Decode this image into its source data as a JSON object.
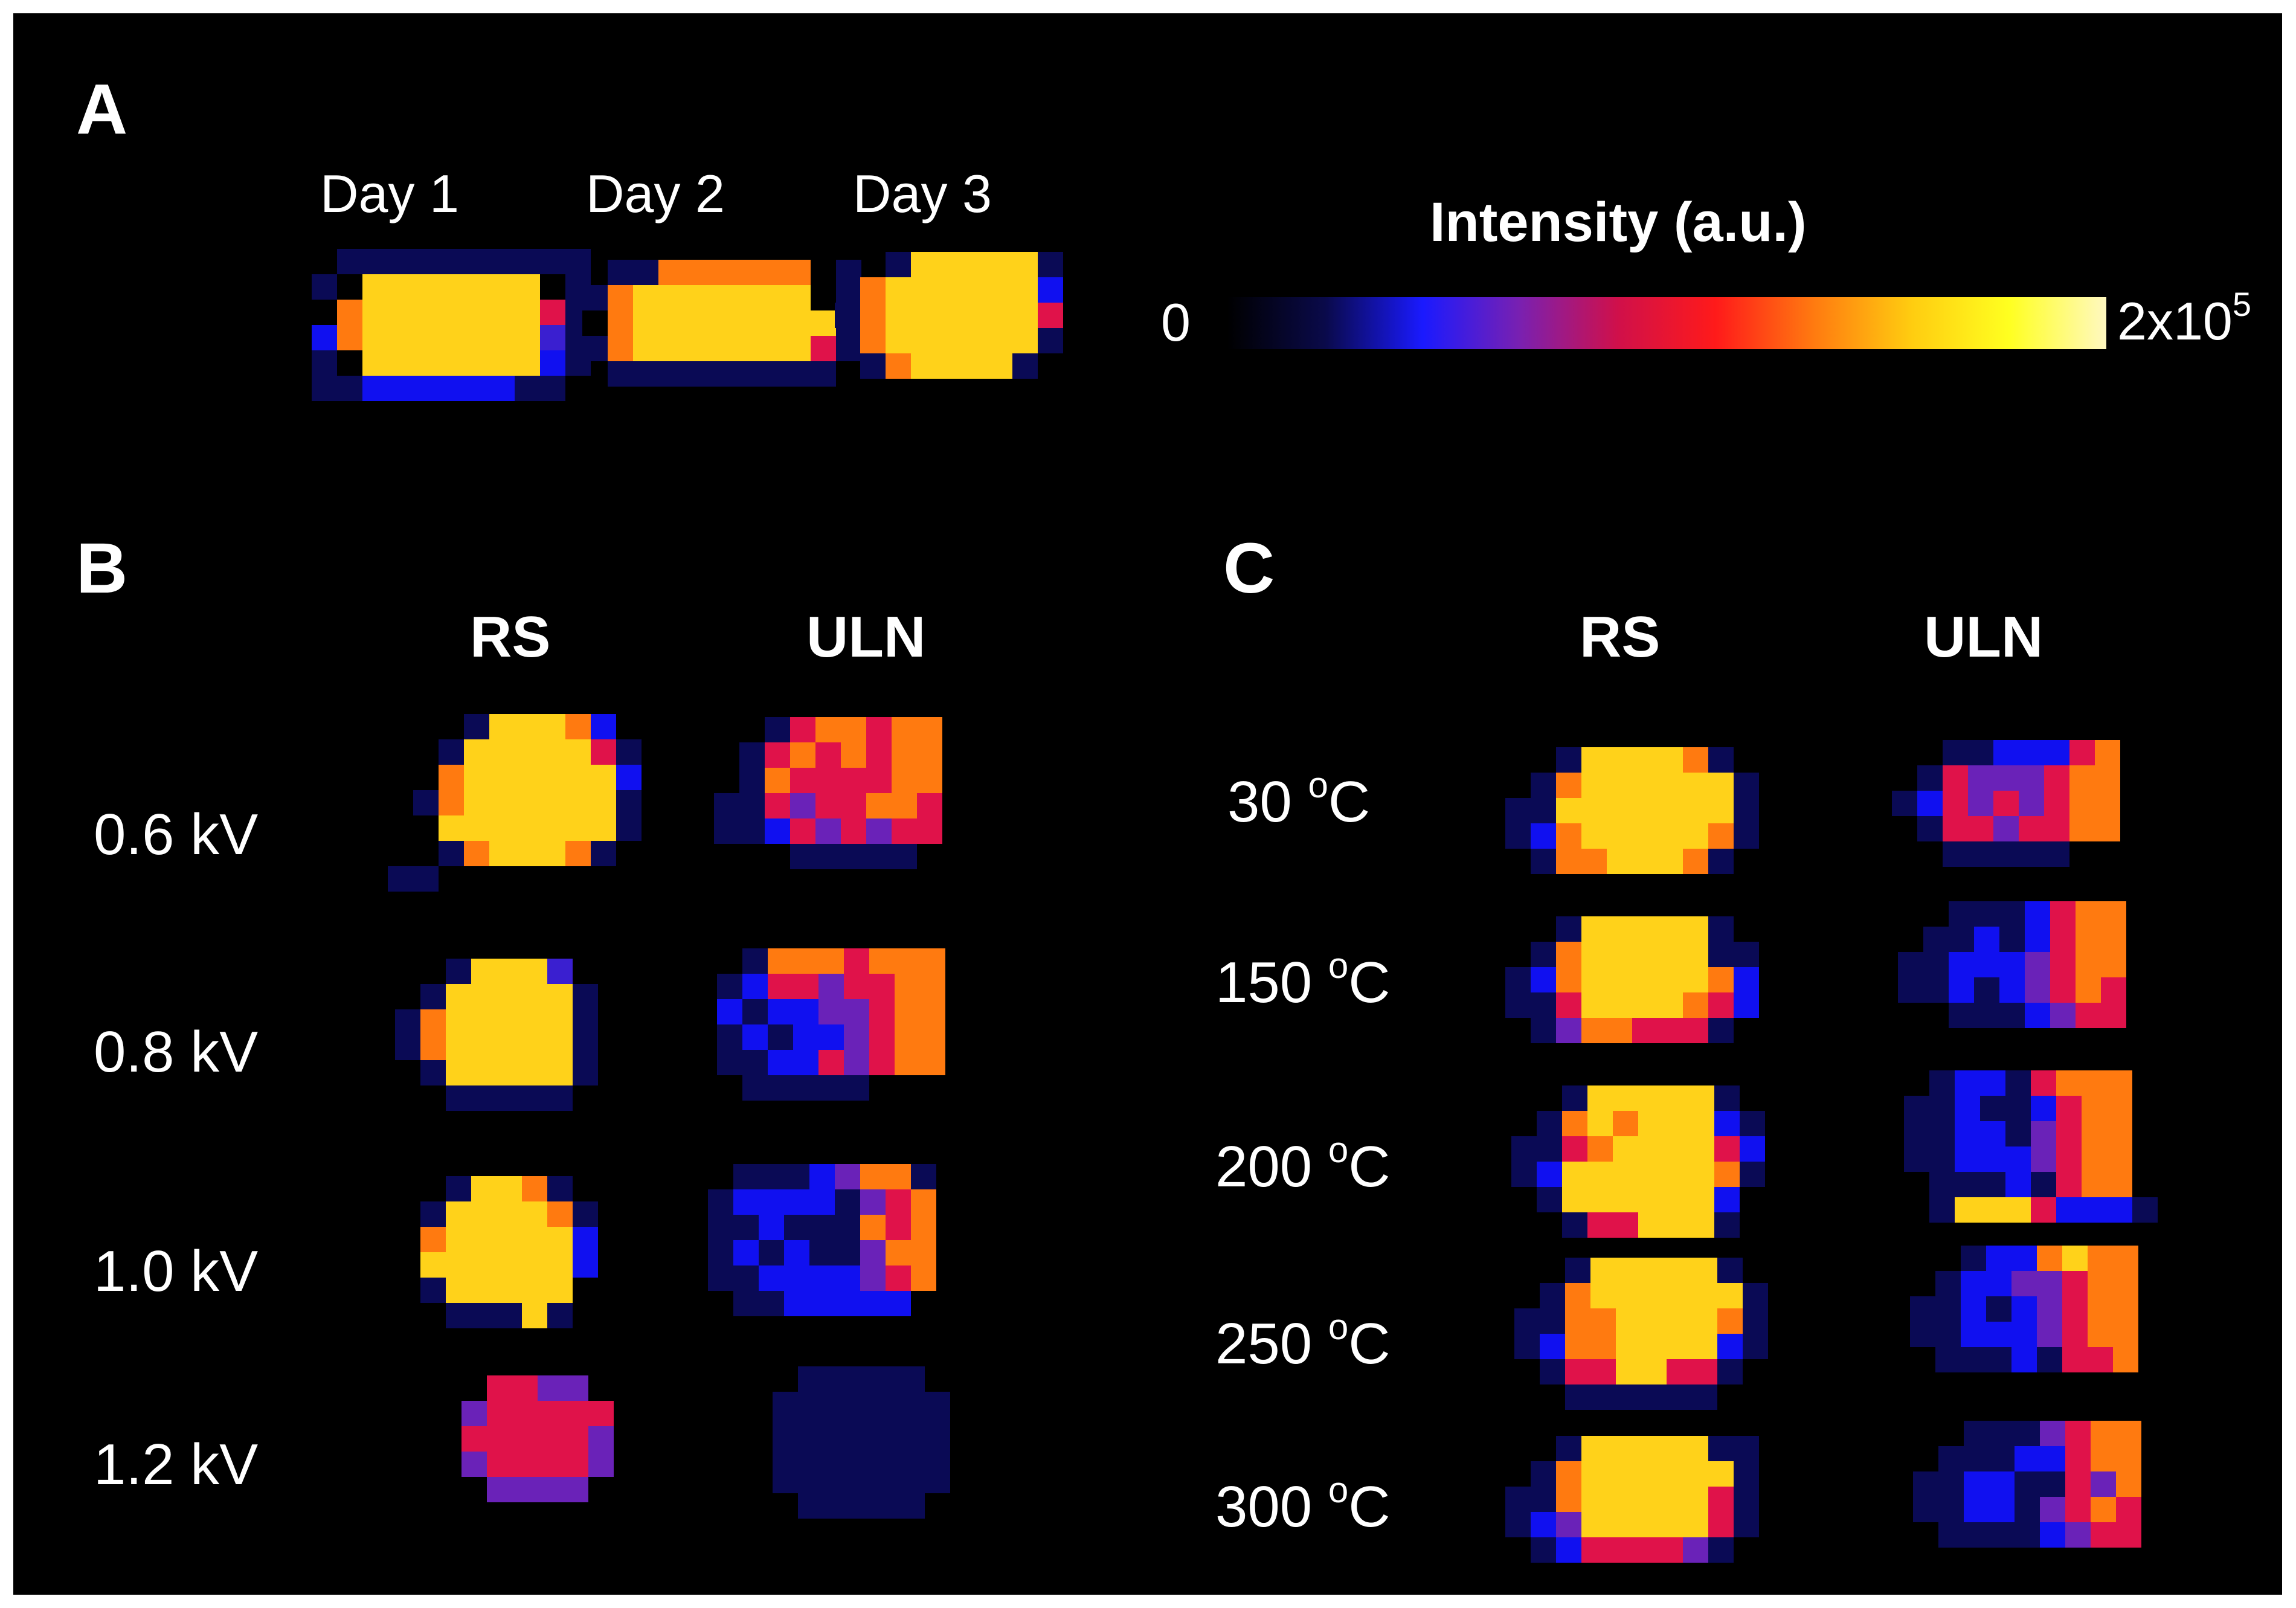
{
  "panels": {
    "a": {
      "letter": "A",
      "columns": [
        "Day 1",
        "Day 2",
        "Day 3"
      ]
    },
    "b": {
      "letter": "B",
      "columns": [
        "RS",
        "ULN"
      ],
      "rows": [
        "0.6 kV",
        "0.8 kV",
        "1.0 kV",
        "1.2 kV"
      ]
    },
    "c": {
      "letter": "C",
      "columns": [
        "RS",
        "ULN"
      ],
      "rows": [
        {
          "value": "30 ",
          "unit_sup": "o",
          "unit": "C"
        },
        {
          "value": "150 ",
          "unit_sup": "o",
          "unit": "C"
        },
        {
          "value": "200 ",
          "unit_sup": "o",
          "unit": "C"
        },
        {
          "value": "250 ",
          "unit_sup": "o",
          "unit": "C"
        },
        {
          "value": "300 ",
          "unit_sup": "o",
          "unit": "C"
        }
      ]
    }
  },
  "colorbar": {
    "title": "Intensity (a.u.)",
    "min_label": "0",
    "max_label_base": "2x10",
    "max_label_exp": "5",
    "gradient_colors": [
      "#000000",
      "#0a0a4a",
      "#1a1aff",
      "#7a20b0",
      "#d0104a",
      "#ff1a1a",
      "#ff7a10",
      "#ffcc10",
      "#ffff20",
      "#fff8c0"
    ]
  },
  "images": [
    {
      "id": "a-day1",
      "rows": [
        "0011111111110",
        "0139999999410",
        "0389999999710",
        "0289999999510",
        "0139999999210",
        "0112222221100"
      ]
    },
    {
      "id": "a-day2",
      "rows": [
        "0011888888310",
        "0189999999310",
        "0389999999910",
        "0189999999710",
        "0011111111100"
      ]
    },
    {
      "id": "a-day3",
      "rows": [
        "001999991",
        "089999992",
        "189999997",
        "089999991",
        "018999910"
      ]
    },
    {
      "id": "b-rs-1",
      "rows": [
        "0001999820",
        "0019999971",
        "0089999992",
        "0189999991",
        "0099999991",
        "0018999810",
        "1100000000"
      ]
    },
    {
      "id": "b-uln-1",
      "rows": [
        "001788788",
        "017878788",
        "018777788",
        "117677887",
        "112767677",
        "000111110"
      ]
    },
    {
      "id": "b-rs-2",
      "rows": [
        "0001999500",
        "0019999910",
        "0189999910",
        "0189999910",
        "0019999910",
        "0001111100"
      ]
    },
    {
      "id": "b-uln-2",
      "rows": [
        "018887888",
        "127767788",
        "212266788",
        "121226788",
        "112276788",
        "011111000"
      ]
    },
    {
      "id": "b-rs-3",
      "rows": [
        "0001998100",
        "0019999810",
        "0089999920",
        "0099999920",
        "0019999900",
        "0001119100"
      ]
    },
    {
      "id": "b-uln-3",
      "rows": [
        "011126881",
        "122221678",
        "112111878",
        "121211688",
        "112222678",
        "011222220"
      ]
    },
    {
      "id": "b-rs-4",
      "rows": [
        "00776600",
        "06777770",
        "07777760",
        "06777760",
        "00666600"
      ]
    },
    {
      "id": "b-uln-4",
      "rows": [
        "001111100",
        "011111110",
        "011111110",
        "011111110",
        "011111110",
        "001111100"
      ]
    },
    {
      "id": "c-rs-1",
      "rows": [
        "0019999810",
        "0189999991",
        "1199999991",
        "1289999981",
        "0188999810"
      ]
    },
    {
      "id": "c-uln-1",
      "rows": [
        "001122278",
        "017666788",
        "127676788",
        "017767788",
        "001111100"
      ]
    },
    {
      "id": "c-rs-2",
      "rows": [
        "0019999910",
        "0189999911",
        "1289999982",
        "1179999872",
        "0168877710"
      ]
    },
    {
      "id": "c-uln-2",
      "rows": [
        "001112788",
        "011212788",
        "112226788",
        "112126787",
        "001112677"
      ]
    },
    {
      "id": "c-rs-3",
      "rows": [
        "0019999910",
        "0189899921",
        "1178999972",
        "1299999981",
        "0199999920",
        "0017799910"
      ]
    },
    {
      "id": "c-uln-3",
      "rows": [
        "012217888",
        "112112788",
        "112216788",
        "112226788",
        "011121788",
        "0199972221"
      ]
    },
    {
      "id": "c-rs-4",
      "rows": [
        "0019999910",
        "0189999991",
        "1188999981",
        "1288999921",
        "0177997710",
        "0011111100"
      ]
    },
    {
      "id": "c-uln-4",
      "rows": [
        "001228988",
        "012266788",
        "112126788",
        "112226788",
        "011121778"
      ]
    },
    {
      "id": "c-rs-5",
      "rows": [
        "0019999911",
        "0189999991",
        "1189999971",
        "1269999971",
        "0127777610"
      ]
    },
    {
      "id": "c-uln-5",
      "rows": [
        "001116788",
        "011122788",
        "112211768",
        "112216787",
        "011112677"
      ]
    }
  ]
}
